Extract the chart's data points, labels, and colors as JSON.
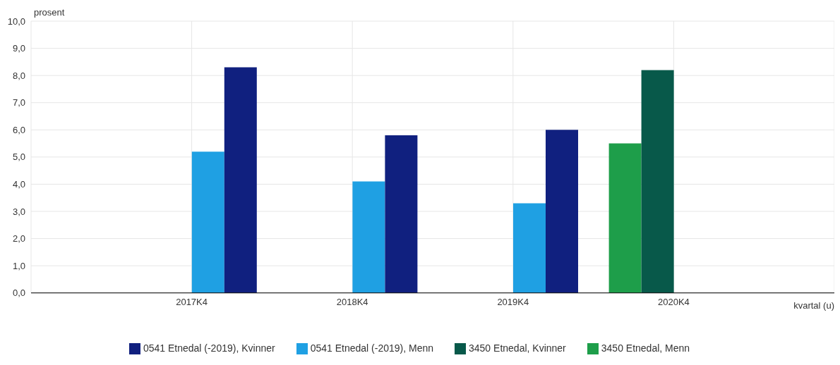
{
  "chart_data": {
    "type": "bar",
    "ylabel": "prosent",
    "xlabel": "kvartal (u)",
    "categories": [
      "2017K4",
      "2018K4",
      "2019K4",
      "2020K4"
    ],
    "series": [
      {
        "name": "3450 Etnedal, Menn",
        "color": "#1e9e4a",
        "values": [
          null,
          null,
          null,
          5.5
        ]
      },
      {
        "name": "3450 Etnedal, Kvinner",
        "color": "#08594a",
        "values": [
          null,
          null,
          null,
          8.2
        ]
      },
      {
        "name": "0541 Etnedal (-2019), Menn",
        "color": "#1fa0e3",
        "values": [
          5.2,
          4.1,
          3.3,
          null
        ]
      },
      {
        "name": "0541 Etnedal (-2019), Kvinner",
        "color": "#10207f",
        "values": [
          8.3,
          5.8,
          6.0,
          null
        ]
      }
    ],
    "ylim": [
      0,
      10
    ],
    "yticks": [
      {
        "value": 0,
        "label": "0,0"
      },
      {
        "value": 1,
        "label": "1,0"
      },
      {
        "value": 2,
        "label": "2,0"
      },
      {
        "value": 3,
        "label": "3,0"
      },
      {
        "value": 4,
        "label": "4,0"
      },
      {
        "value": 5,
        "label": "5,0"
      },
      {
        "value": 6,
        "label": "6,0"
      },
      {
        "value": 7,
        "label": "7,0"
      },
      {
        "value": 8,
        "label": "8,0"
      },
      {
        "value": 9,
        "label": "9,0"
      },
      {
        "value": 10,
        "label": "10,0"
      }
    ],
    "grid": true,
    "legend": "bottom"
  }
}
